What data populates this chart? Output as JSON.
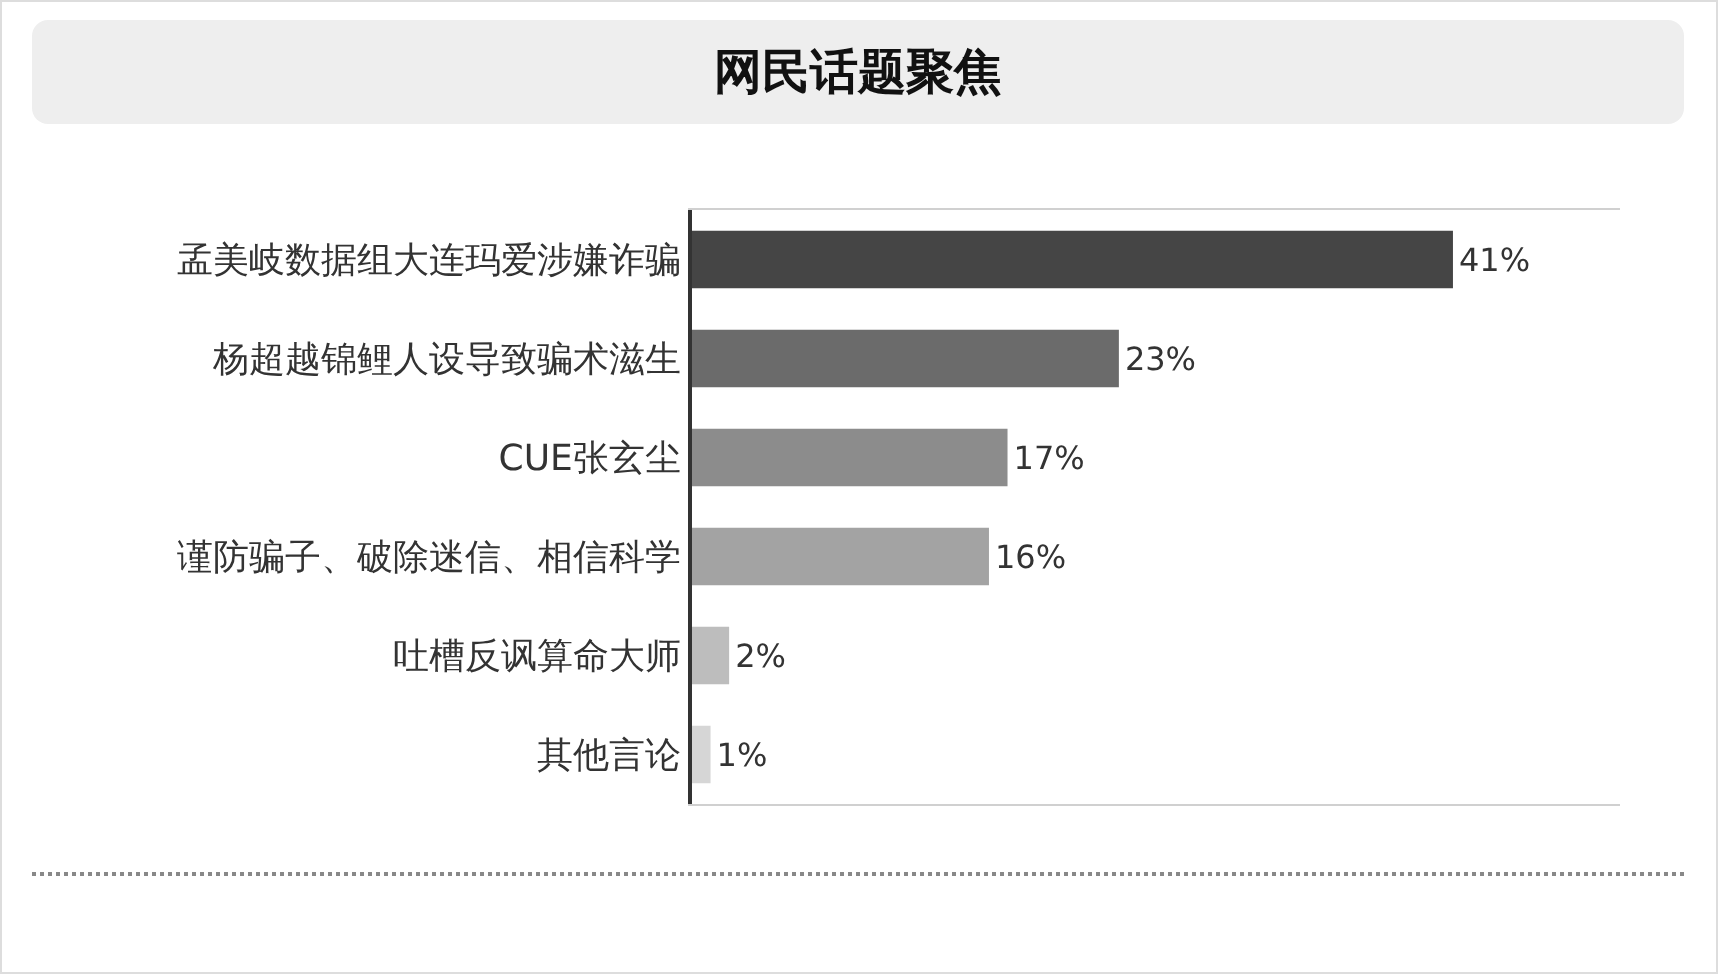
{
  "chart_data": {
    "type": "bar",
    "orientation": "horizontal",
    "title": "网民话题聚焦",
    "categories": [
      "孟美岐数据组大连玛爱涉嫌诈骗",
      "杨超越锦鲤人设导致骗术滋生",
      "CUE张玄尘",
      "谨防骗子、破除迷信、相信科学",
      "吐槽反讽算命大师",
      "其他言论"
    ],
    "values": [
      41,
      23,
      17,
      16,
      2,
      1
    ],
    "colors": [
      "#454545",
      "#6b6b6b",
      "#8c8c8c",
      "#a3a3a3",
      "#bdbdbd",
      "#d6d6d6"
    ],
    "value_labels": [
      "41%",
      "23%",
      "17%",
      "16%",
      "2%",
      "1%"
    ],
    "xlim": [
      0,
      50
    ],
    "tick_labels": "y",
    "legend": false
  }
}
